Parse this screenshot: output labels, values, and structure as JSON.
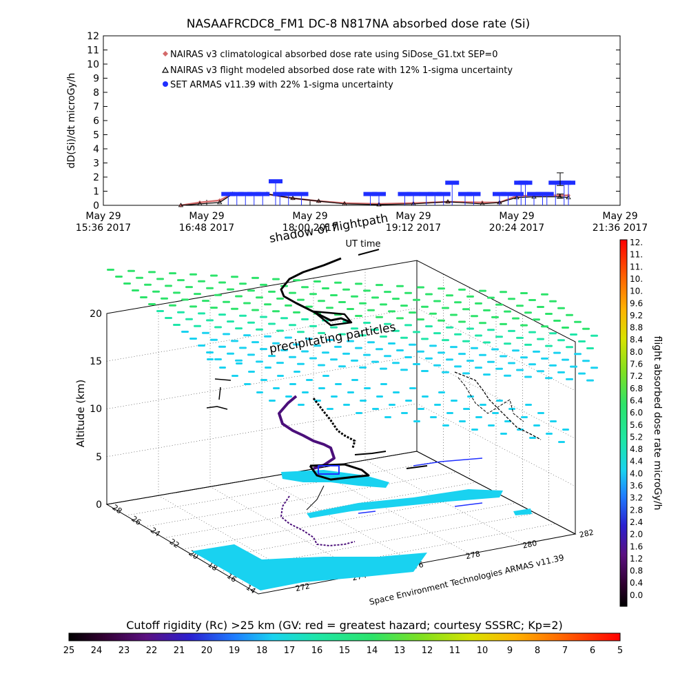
{
  "chart_data": [
    {
      "type": "line",
      "title": "NASAAFRCDC8_FM1 DC-8   N817NA absorbed dose rate (Si)",
      "ylabel": "dD(Si)/dt microGy/h",
      "xlabel": "UT time",
      "ylim": [
        0,
        12
      ],
      "x_range": [
        "May 29 15:36 2017",
        "May 29 21:36 2017"
      ],
      "y_ticks": [
        0,
        1,
        2,
        3,
        4,
        5,
        6,
        7,
        8,
        9,
        10,
        11,
        12
      ],
      "x_ticks": [
        {
          "day": "May 29",
          "time": "15:36 2017"
        },
        {
          "day": "May 29",
          "time": "16:48 2017"
        },
        {
          "day": "May 29",
          "time": "18:00 2017"
        },
        {
          "day": "May 29",
          "time": "19:12 2017"
        },
        {
          "day": "May 29",
          "time": "20:24 2017"
        },
        {
          "day": "May 29",
          "time": "21:36 2017"
        }
      ],
      "legend_position": "top-left",
      "series": [
        {
          "name": "NAIRAS v3 climatological absorbed dose rate using SiDose_G1.txt SEP=0",
          "color": "#d46a6a",
          "marker": "diamond",
          "x_hours": [
            16.5,
            16.72,
            16.95,
            17.1,
            17.5,
            17.8,
            18.1,
            18.4,
            18.8,
            19.2,
            19.6,
            20.0,
            20.2,
            20.4,
            20.6,
            20.9,
            21.0
          ],
          "y": [
            0.0,
            0.2,
            0.35,
            0.8,
            0.8,
            0.5,
            0.3,
            0.15,
            0.1,
            0.15,
            0.25,
            0.2,
            0.2,
            0.65,
            0.7,
            0.7,
            0.7
          ]
        },
        {
          "name": "NAIRAS v3 flight modeled absorbed dose rate with 12% 1-sigma uncertainty",
          "color": "#000000",
          "marker": "triangle",
          "x_hours": [
            16.5,
            16.72,
            16.95,
            17.1,
            17.5,
            17.8,
            18.1,
            18.4,
            18.8,
            19.2,
            19.6,
            20.0,
            20.2,
            20.4,
            20.6,
            20.9,
            21.0
          ],
          "y": [
            0.0,
            0.1,
            0.2,
            0.8,
            0.8,
            0.5,
            0.3,
            0.1,
            0.05,
            0.1,
            0.25,
            0.1,
            0.2,
            0.55,
            0.6,
            0.6,
            0.55
          ]
        },
        {
          "name": "SET ARMAS v11.39 with 22% 1-sigma uncertainty",
          "color": "#1f2fff",
          "marker": "circle",
          "x_hours": [
            17.05,
            17.15,
            17.25,
            17.35,
            17.45,
            17.6,
            17.65,
            17.75,
            17.9,
            18.7,
            18.8,
            19.1,
            19.2,
            19.35,
            19.45,
            19.55,
            19.65,
            19.8,
            19.9,
            20.2,
            20.3,
            20.4,
            20.45,
            20.5,
            20.6,
            20.7,
            20.75,
            20.85,
            20.95,
            21.0
          ],
          "y": [
            0.8,
            0.8,
            0.8,
            0.8,
            0.8,
            1.7,
            0.8,
            0.8,
            0.8,
            0.8,
            0.8,
            0.8,
            0.8,
            0.8,
            0.8,
            0.8,
            1.6,
            0.8,
            0.8,
            0.8,
            0.8,
            0.8,
            1.6,
            1.6,
            0.8,
            0.8,
            0.8,
            1.6,
            1.6,
            1.6
          ]
        }
      ]
    },
    {
      "type": "scatter",
      "title": "shadow of flightpath",
      "annotations": [
        "shadow of flightpath",
        "precipitating particles",
        "Space Environment Technologies ARMAS v11.39"
      ],
      "zlabel": "Altitude (km)",
      "z_ticks": [
        0,
        5,
        10,
        15,
        20
      ],
      "lat_ticks": [
        "28",
        "26",
        "24",
        "22",
        "20",
        "18",
        "16",
        "14"
      ],
      "lon_ticks": [
        "272",
        "274",
        "276",
        "278",
        "280",
        "282"
      ],
      "colorbar": {
        "title": "flight absorbed dose rate microGy/h",
        "range": [
          0,
          12.4
        ],
        "ticks": [
          "12.",
          "11.",
          "11.",
          "10.",
          "10.",
          "9.6",
          "9.2",
          "8.8",
          "8.4",
          "8.0",
          "7.6",
          "7.2",
          "6.8",
          "6.4",
          "6.0",
          "5.6",
          "5.2",
          "4.8",
          "4.4",
          "4.0",
          "3.6",
          "3.2",
          "2.8",
          "2.4",
          "2.0",
          "1.6",
          "1.2",
          "0.8",
          "0.4",
          "0.0"
        ]
      }
    },
    {
      "type": "heatmap",
      "title": "Cutoff rigidity (Rc) >25 km (GV: red = greatest hazard; courtesy SSSRC; Kp=2)",
      "colorbar_ticks": [
        "25",
        "24",
        "23",
        "22",
        "21",
        "20",
        "19",
        "18",
        "17",
        "16",
        "15",
        "14",
        "13",
        "12",
        "11",
        "10",
        "9",
        "8",
        "7",
        "6",
        "5"
      ]
    }
  ]
}
